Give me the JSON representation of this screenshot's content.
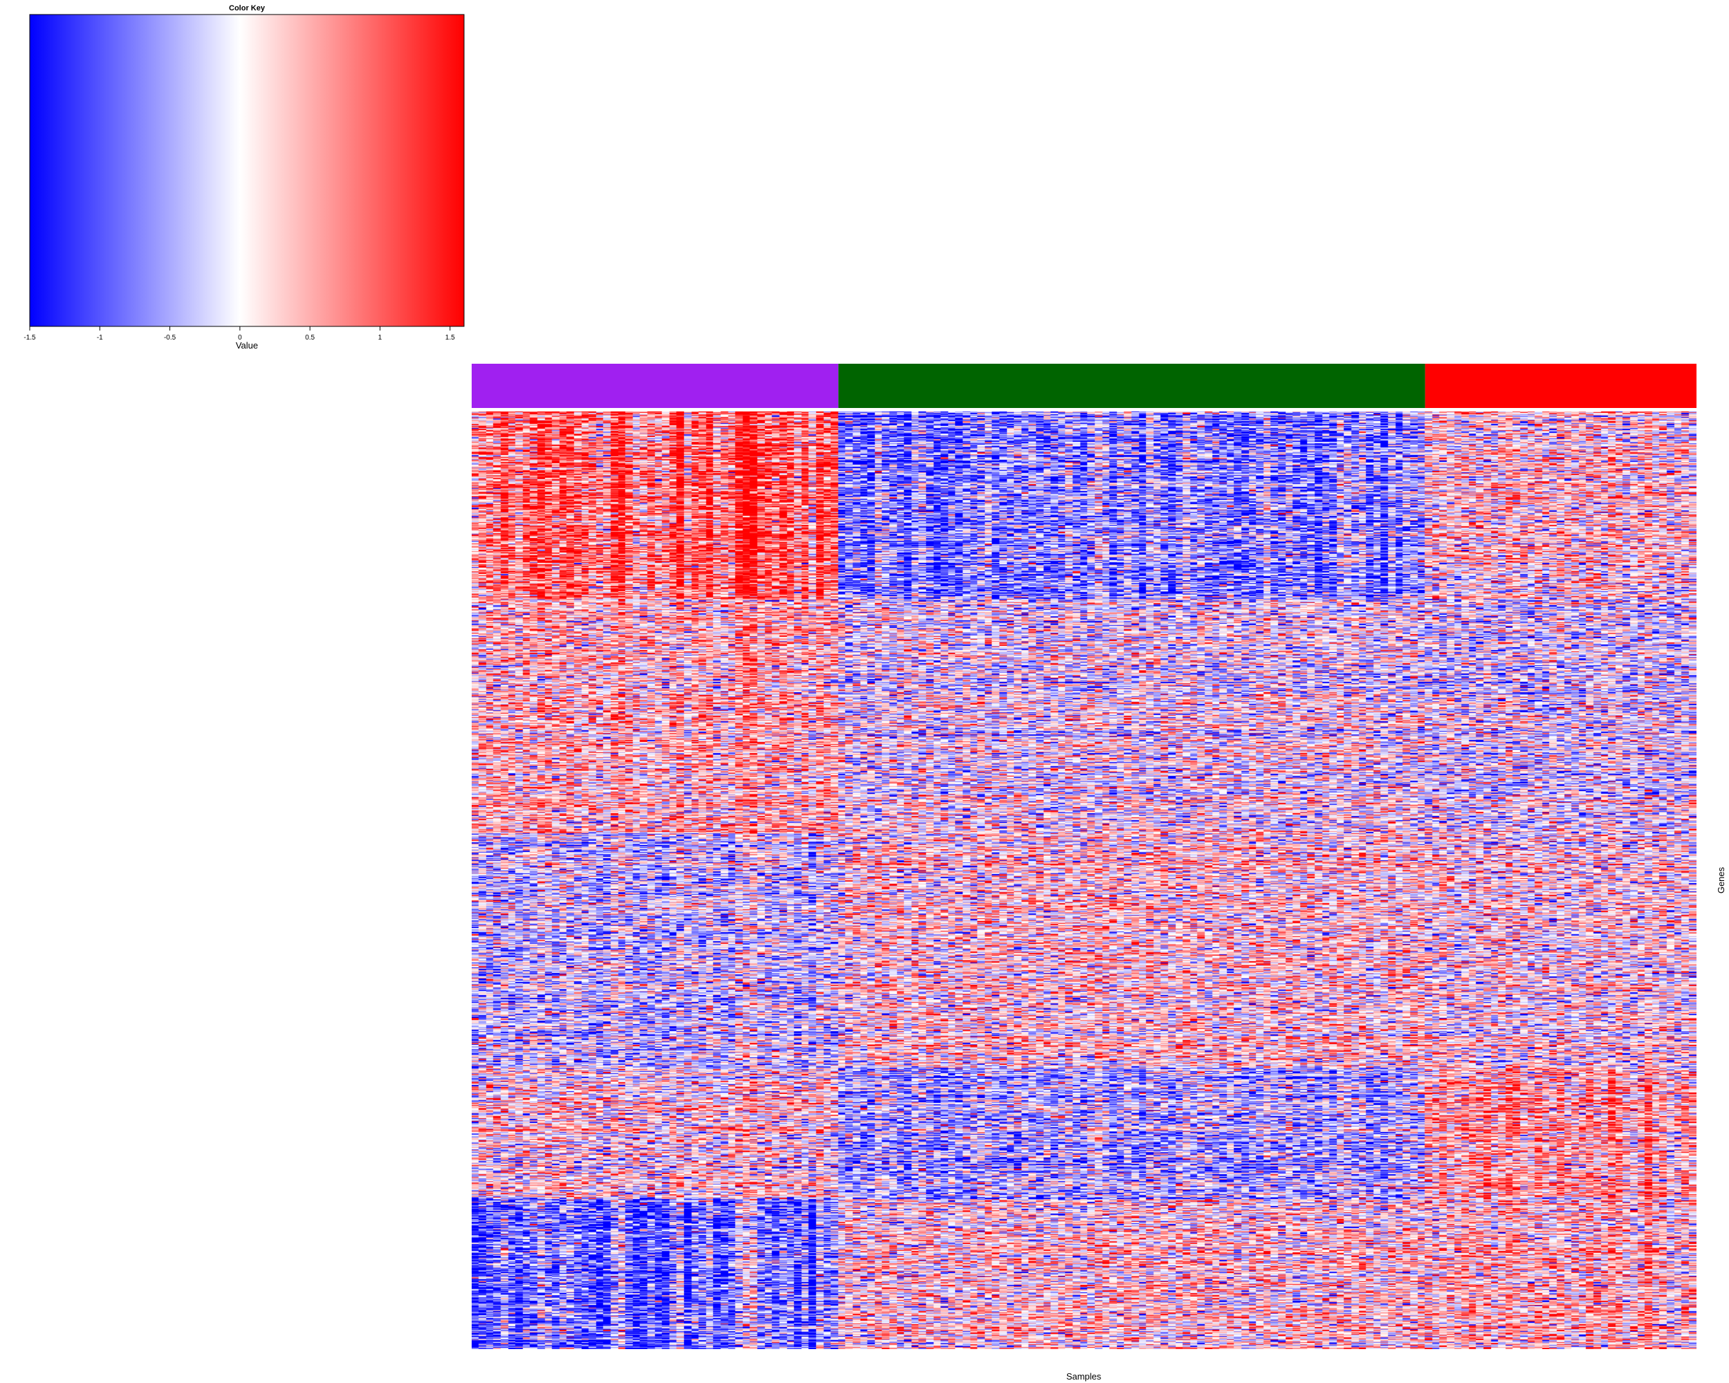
{
  "chart_data": {
    "type": "heatmap",
    "xlabel": "Samples",
    "ylabel": "Genes",
    "color_key": {
      "title": "Color Key",
      "xlabel": "Value",
      "range": [
        -1.5,
        1.6
      ],
      "ticks": [
        "-1.5",
        "-1",
        "-0.5",
        "0",
        "0.5",
        "1",
        "1.5"
      ],
      "tick_values": [
        -1.5,
        -1,
        -0.5,
        0,
        0.5,
        1,
        1.5
      ],
      "colors": {
        "low": "#0000ff",
        "mid": "#ffffff",
        "high": "#ff0000"
      }
    },
    "sample_groups": [
      {
        "color": "#a020f0",
        "n_samples": 50
      },
      {
        "color": "#006400",
        "n_samples": 80
      },
      {
        "color": "#ff0000",
        "n_samples": 37
      }
    ],
    "n_genes": 1000,
    "row_blocks": [
      {
        "fraction": 0.2,
        "group_means": [
          0.9,
          -0.7,
          0.25
        ]
      },
      {
        "fraction": 0.25,
        "group_means": [
          0.35,
          -0.05,
          -0.15
        ]
      },
      {
        "fraction": 0.25,
        "group_means": [
          -0.3,
          0.2,
          0.1
        ]
      },
      {
        "fraction": 0.14,
        "group_means": [
          0.15,
          -0.45,
          0.55
        ]
      },
      {
        "fraction": 0.16,
        "group_means": [
          -0.9,
          0.2,
          0.35
        ]
      }
    ]
  }
}
